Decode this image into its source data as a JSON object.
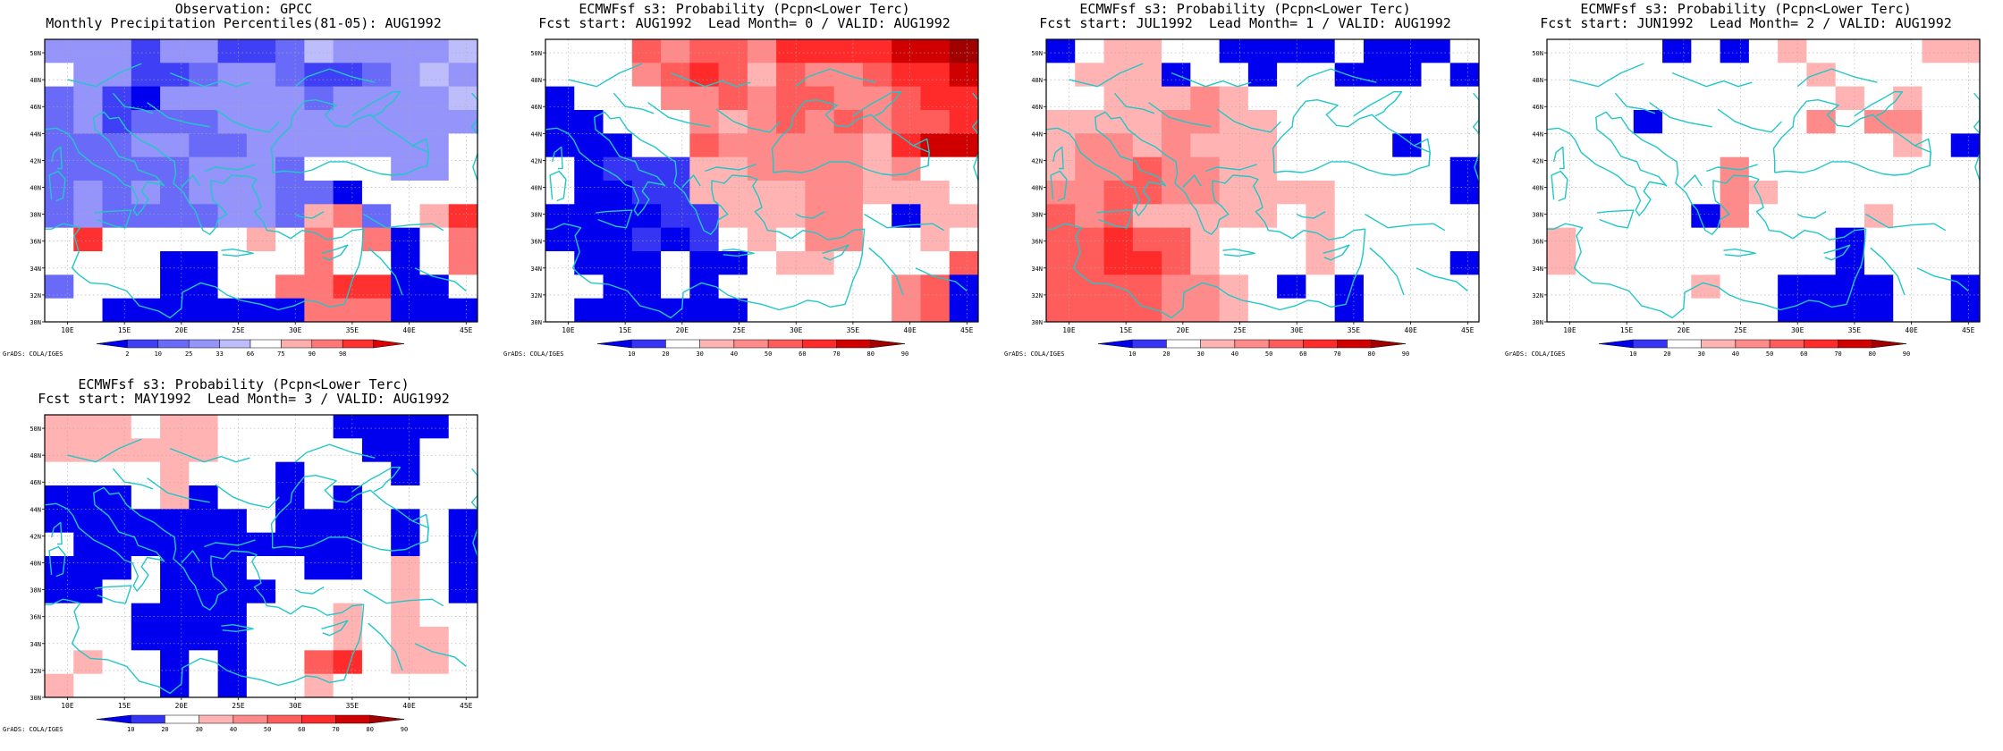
{
  "credit": "GrADS: COLA/IGES",
  "axis": {
    "lon_ticks": [
      "10E",
      "15E",
      "20E",
      "25E",
      "30E",
      "35E",
      "40E",
      "45E"
    ],
    "lat_ticks": [
      "30N",
      "32N",
      "34N",
      "36N",
      "38N",
      "40N",
      "42N",
      "44N",
      "46N",
      "48N",
      "50N"
    ]
  },
  "colors": {
    "coast": "#22c7c7",
    "obs_scale": [
      "#0000ee",
      "#3f3ff5",
      "#6a6af8",
      "#9494fb",
      "#bdbdfc",
      "#ffffff",
      "#ffaeae",
      "#ff7777",
      "#ff3030",
      "#dd0000"
    ],
    "prob_scale": [
      "#0000ee",
      "#3535f3",
      "#ffffff",
      "#ffb3b3",
      "#ff8a8a",
      "#ff5c5c",
      "#ff2a2a",
      "#d00000",
      "#a00000"
    ]
  },
  "panels": [
    {
      "id": "obs",
      "title1": "Observation: GPCC",
      "title2": "Monthly Precipitation Percentiles(81-05): AUG1992",
      "colorbar_labels": [
        "2",
        "10",
        "25",
        "33",
        "66",
        "75",
        "90",
        "98"
      ],
      "scale": "obs",
      "grid": [
        [
          3,
          3,
          3,
          1,
          3,
          3,
          1,
          1,
          2,
          4,
          3,
          3,
          3,
          3,
          4
        ],
        [
          5,
          3,
          3,
          1,
          1,
          2,
          3,
          3,
          2,
          1,
          1,
          2,
          3,
          4,
          3
        ],
        [
          2,
          3,
          1,
          0,
          3,
          3,
          3,
          3,
          3,
          2,
          3,
          3,
          3,
          3,
          4
        ],
        [
          2,
          3,
          1,
          2,
          2,
          2,
          3,
          3,
          3,
          3,
          3,
          3,
          3,
          3,
          3
        ],
        [
          2,
          2,
          2,
          3,
          3,
          2,
          2,
          3,
          3,
          3,
          3,
          3,
          3,
          3,
          5
        ],
        [
          2,
          2,
          2,
          2,
          2,
          3,
          3,
          3,
          2,
          5,
          5,
          5,
          3,
          3,
          5
        ],
        [
          2,
          3,
          2,
          3,
          2,
          3,
          3,
          3,
          2,
          2,
          0,
          5,
          5,
          5,
          5
        ],
        [
          2,
          3,
          2,
          2,
          2,
          2,
          3,
          3,
          2,
          6,
          7,
          2,
          5,
          6,
          8
        ],
        [
          5,
          8,
          5,
          5,
          5,
          5,
          5,
          6,
          5,
          7,
          5,
          7,
          0,
          5,
          7
        ],
        [
          5,
          5,
          5,
          5,
          0,
          0,
          5,
          5,
          5,
          7,
          5,
          5,
          0,
          5,
          7
        ],
        [
          2,
          5,
          5,
          5,
          0,
          0,
          5,
          5,
          7,
          7,
          8,
          8,
          0,
          0,
          5
        ],
        [
          5,
          5,
          0,
          0,
          0,
          0,
          0,
          0,
          0,
          7,
          7,
          7,
          0,
          0,
          0
        ]
      ]
    },
    {
      "id": "lead0",
      "title1": "ECMWFsf s3: Probability (Pcpn<Lower Terc)",
      "title2": "Fcst start: AUG1992  Lead Month= 0 / VALID: AUG1992",
      "colorbar_labels": [
        "10",
        "20",
        "30",
        "40",
        "50",
        "60",
        "70",
        "80",
        "90"
      ],
      "scale": "prob",
      "grid": [
        [
          2,
          2,
          2,
          5,
          4,
          5,
          5,
          4,
          6,
          6,
          6,
          6,
          7,
          7,
          8
        ],
        [
          2,
          2,
          2,
          4,
          5,
          6,
          5,
          3,
          5,
          4,
          4,
          5,
          6,
          6,
          7
        ],
        [
          0,
          2,
          2,
          2,
          4,
          4,
          5,
          4,
          5,
          5,
          4,
          4,
          5,
          6,
          6
        ],
        [
          0,
          0,
          2,
          2,
          2,
          4,
          3,
          4,
          5,
          4,
          5,
          4,
          5,
          5,
          6
        ],
        [
          0,
          0,
          0,
          2,
          2,
          5,
          4,
          4,
          4,
          4,
          4,
          3,
          6,
          7,
          7
        ],
        [
          2,
          0,
          1,
          1,
          1,
          3,
          3,
          4,
          4,
          4,
          4,
          3,
          4,
          2,
          2
        ],
        [
          2,
          0,
          0,
          1,
          1,
          3,
          3,
          3,
          3,
          4,
          4,
          3,
          3,
          3,
          2
        ],
        [
          0,
          0,
          0,
          0,
          1,
          1,
          3,
          3,
          3,
          4,
          4,
          2,
          0,
          3,
          3
        ],
        [
          0,
          0,
          0,
          1,
          0,
          1,
          2,
          3,
          2,
          4,
          4,
          2,
          2,
          3,
          2
        ],
        [
          2,
          0,
          0,
          0,
          2,
          0,
          0,
          2,
          3,
          3,
          2,
          2,
          2,
          2,
          5
        ],
        [
          2,
          2,
          0,
          0,
          2,
          0,
          2,
          2,
          2,
          2,
          2,
          2,
          4,
          5,
          0
        ],
        [
          2,
          0,
          0,
          0,
          0,
          0,
          0,
          2,
          2,
          2,
          2,
          2,
          4,
          5,
          0
        ]
      ]
    },
    {
      "id": "lead1",
      "title1": "ECMWFsf s3: Probability (Pcpn<Lower Terc)",
      "title2": "Fcst start: JUL1992  Lead Month= 1 / VALID: AUG1992",
      "colorbar_labels": [
        "10",
        "20",
        "30",
        "40",
        "50",
        "60",
        "70",
        "80",
        "90"
      ],
      "scale": "prob",
      "grid": [
        [
          0,
          2,
          3,
          3,
          2,
          2,
          0,
          0,
          0,
          0,
          2,
          0,
          0,
          0,
          2
        ],
        [
          2,
          3,
          3,
          3,
          0,
          2,
          2,
          0,
          2,
          2,
          0,
          0,
          0,
          2,
          0
        ],
        [
          2,
          2,
          3,
          3,
          3,
          4,
          3,
          2,
          2,
          2,
          2,
          2,
          2,
          2,
          2
        ],
        [
          3,
          3,
          3,
          3,
          4,
          4,
          3,
          3,
          2,
          2,
          2,
          2,
          2,
          2,
          2
        ],
        [
          3,
          4,
          4,
          3,
          4,
          3,
          3,
          3,
          2,
          2,
          2,
          2,
          0,
          2,
          2
        ],
        [
          3,
          4,
          4,
          5,
          4,
          4,
          3,
          3,
          2,
          2,
          2,
          2,
          2,
          2,
          0
        ],
        [
          4,
          4,
          5,
          5,
          4,
          4,
          3,
          3,
          3,
          3,
          2,
          2,
          2,
          2,
          0
        ],
        [
          5,
          4,
          5,
          3,
          3,
          3,
          3,
          3,
          2,
          3,
          2,
          2,
          2,
          2,
          2
        ],
        [
          5,
          5,
          6,
          5,
          5,
          3,
          2,
          2,
          2,
          3,
          2,
          2,
          2,
          2,
          2
        ],
        [
          5,
          5,
          6,
          6,
          5,
          3,
          2,
          2,
          2,
          3,
          2,
          2,
          2,
          2,
          0
        ],
        [
          5,
          5,
          5,
          5,
          4,
          4,
          3,
          2,
          0,
          2,
          0,
          2,
          2,
          2,
          2
        ],
        [
          5,
          5,
          5,
          5,
          4,
          4,
          3,
          2,
          2,
          2,
          0,
          2,
          2,
          2,
          2
        ]
      ]
    },
    {
      "id": "lead2",
      "title1": "ECMWFsf s3: Probability (Pcpn<Lower Terc)",
      "title2": "Fcst start: JUN1992  Lead Month= 2 / VALID: AUG1992",
      "colorbar_labels": [
        "10",
        "20",
        "30",
        "40",
        "50",
        "60",
        "70",
        "80",
        "90"
      ],
      "scale": "prob",
      "grid": [
        [
          2,
          2,
          2,
          2,
          0,
          2,
          0,
          2,
          3,
          2,
          2,
          2,
          2,
          3,
          3
        ],
        [
          2,
          2,
          2,
          2,
          2,
          2,
          2,
          2,
          2,
          3,
          2,
          2,
          2,
          2,
          2
        ],
        [
          2,
          2,
          2,
          2,
          2,
          2,
          2,
          2,
          2,
          2,
          3,
          2,
          3,
          2,
          2
        ],
        [
          2,
          2,
          2,
          0,
          2,
          2,
          2,
          2,
          2,
          4,
          2,
          4,
          4,
          2,
          2
        ],
        [
          2,
          2,
          2,
          2,
          2,
          2,
          2,
          2,
          2,
          2,
          2,
          2,
          3,
          2,
          0
        ],
        [
          2,
          2,
          2,
          2,
          2,
          2,
          4,
          2,
          2,
          2,
          2,
          2,
          2,
          2,
          2
        ],
        [
          2,
          2,
          2,
          2,
          2,
          2,
          4,
          3,
          2,
          2,
          2,
          2,
          2,
          2,
          2
        ],
        [
          2,
          2,
          2,
          2,
          2,
          0,
          4,
          2,
          2,
          2,
          2,
          3,
          2,
          2,
          2
        ],
        [
          3,
          2,
          2,
          2,
          2,
          2,
          2,
          2,
          2,
          2,
          0,
          2,
          2,
          2,
          2
        ],
        [
          3,
          2,
          2,
          2,
          2,
          2,
          2,
          2,
          2,
          2,
          0,
          2,
          2,
          2,
          2
        ],
        [
          2,
          2,
          2,
          2,
          2,
          3,
          2,
          2,
          0,
          0,
          0,
          0,
          2,
          2,
          0
        ],
        [
          2,
          2,
          2,
          2,
          2,
          2,
          2,
          2,
          0,
          0,
          0,
          0,
          2,
          2,
          0
        ]
      ]
    },
    {
      "id": "lead3",
      "title1": "ECMWFsf s3: Probability (Pcpn<Lower Terc)",
      "title2": "Fcst start: MAY1992  Lead Month= 3 / VALID: AUG1992",
      "colorbar_labels": [
        "10",
        "20",
        "30",
        "40",
        "50",
        "60",
        "70",
        "80",
        "90"
      ],
      "scale": "prob",
      "grid": [
        [
          3,
          3,
          3,
          2,
          3,
          3,
          2,
          2,
          2,
          2,
          0,
          0,
          0,
          0,
          2
        ],
        [
          3,
          3,
          3,
          3,
          3,
          3,
          2,
          2,
          2,
          2,
          2,
          0,
          0,
          2,
          2
        ],
        [
          2,
          2,
          2,
          2,
          3,
          2,
          2,
          2,
          0,
          2,
          2,
          2,
          0,
          2,
          2
        ],
        [
          0,
          0,
          0,
          2,
          3,
          0,
          2,
          2,
          0,
          2,
          0,
          2,
          2,
          2,
          2
        ],
        [
          0,
          0,
          0,
          0,
          0,
          0,
          0,
          2,
          0,
          0,
          0,
          2,
          0,
          2,
          0
        ],
        [
          2,
          0,
          0,
          0,
          0,
          0,
          0,
          0,
          0,
          0,
          0,
          2,
          0,
          2,
          0
        ],
        [
          0,
          0,
          0,
          2,
          0,
          0,
          0,
          2,
          2,
          0,
          0,
          2,
          3,
          2,
          0
        ],
        [
          0,
          0,
          2,
          2,
          0,
          0,
          0,
          0,
          2,
          2,
          2,
          2,
          3,
          2,
          0
        ],
        [
          2,
          2,
          2,
          0,
          0,
          0,
          0,
          2,
          2,
          2,
          3,
          2,
          3,
          2,
          2
        ],
        [
          2,
          2,
          2,
          0,
          0,
          0,
          0,
          2,
          2,
          2,
          3,
          2,
          3,
          3,
          2
        ],
        [
          2,
          3,
          2,
          2,
          0,
          2,
          0,
          2,
          2,
          5,
          6,
          2,
          3,
          3,
          2
        ],
        [
          3,
          2,
          2,
          2,
          0,
          2,
          0,
          2,
          2,
          3,
          2,
          2,
          2,
          2,
          2
        ]
      ]
    }
  ]
}
